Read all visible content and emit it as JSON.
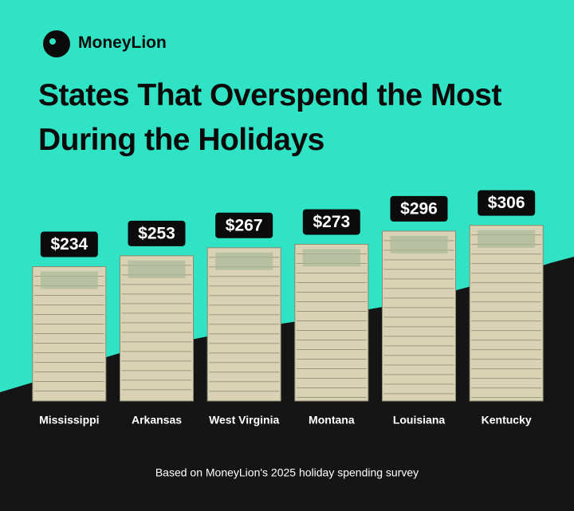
{
  "brand": "MoneyLion",
  "chart_data": {
    "type": "bar",
    "title": "States That Overspend the Most During the Holidays",
    "categories": [
      "Mississippi",
      "Arkansas",
      "West Virginia",
      "Montana",
      "Louisiana",
      "Kentucky"
    ],
    "values": [
      234,
      253,
      267,
      273,
      296,
      306
    ],
    "value_labels": [
      "$234",
      "$253",
      "$267",
      "$273",
      "$296",
      "$306"
    ],
    "color": "#d9d2b4",
    "note": "Based on MoneyLion's 2025 holiday spending survey"
  }
}
